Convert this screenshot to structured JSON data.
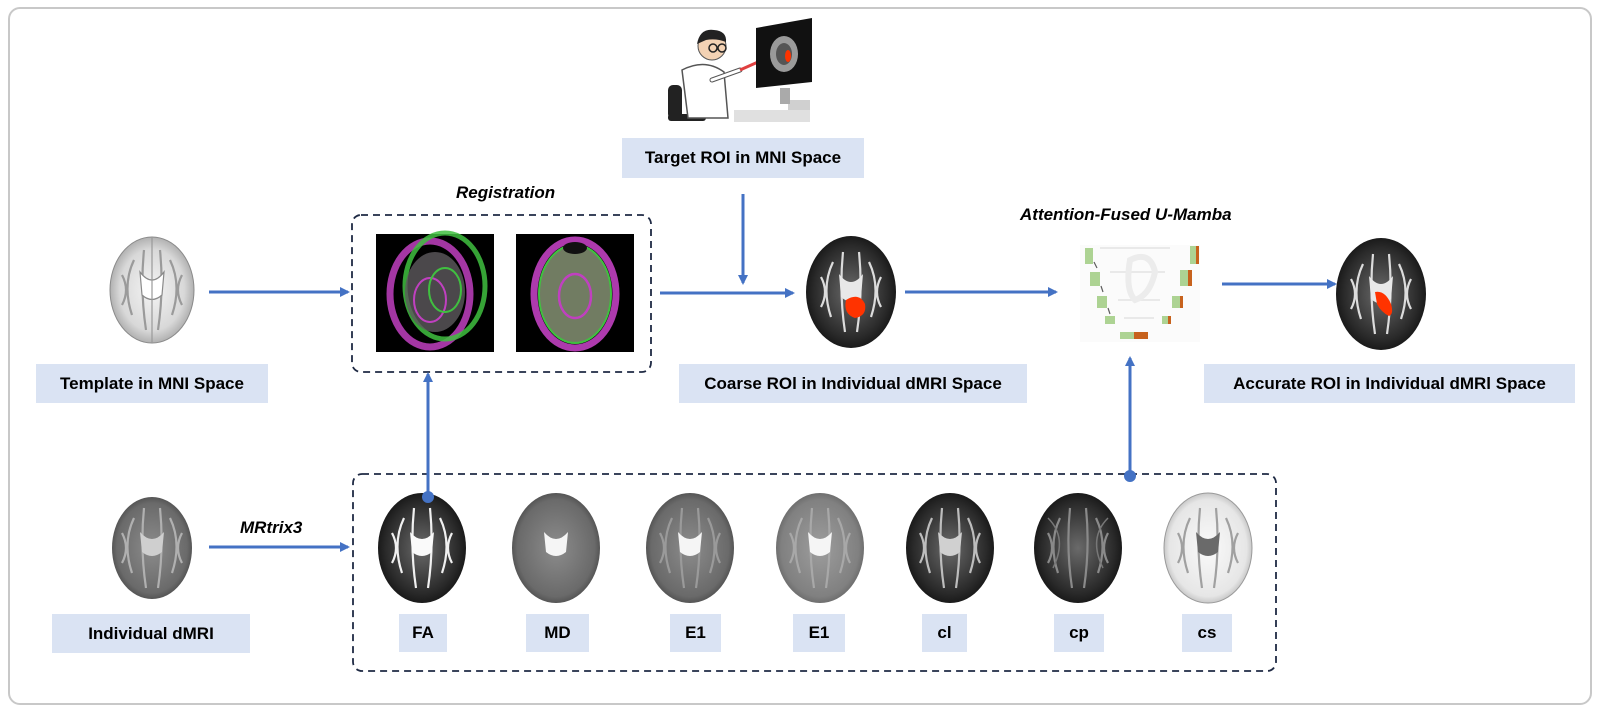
{
  "labels": {
    "template": "Template in MNI Space",
    "target_roi": "Target ROI in MNI Space",
    "coarse_roi": "Coarse ROl in Individual dMRl Space",
    "accurate_roi": "Accurate ROl in Individual dMRl Space",
    "individual": "Individual dMRI"
  },
  "captions": {
    "registration": "Registration",
    "unet": "Attention-Fused U-Mamba",
    "mrtrix": "MRtrix3"
  },
  "features": [
    "FA",
    "MD",
    "E1",
    "E1",
    "cl",
    "cp",
    "cs"
  ],
  "colors": {
    "arrow": "#4472c4",
    "label_bg": "#dae3f3",
    "roi": "#ff3300",
    "registration_magenta": "#c040c0",
    "registration_green": "#40c040"
  }
}
